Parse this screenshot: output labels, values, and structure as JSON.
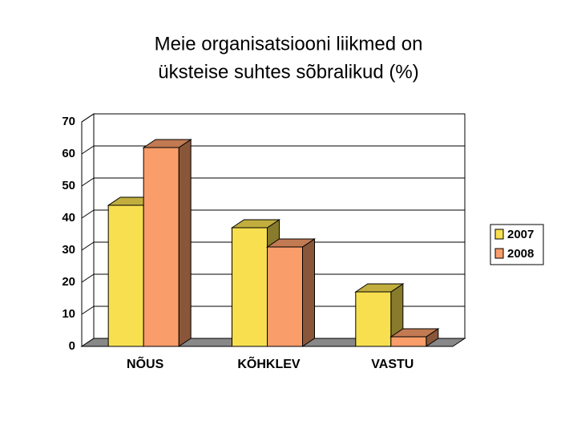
{
  "chart_data": {
    "type": "bar3d",
    "title": [
      "Meie organisatsiooni liikmed on",
      "üksteise suhtes sõbralikud (%)"
    ],
    "categories": [
      "NÕUS",
      "KÕHKLEV",
      "VASTU"
    ],
    "series": [
      {
        "name": "2007",
        "color": "#f8df50",
        "values": [
          44,
          37,
          17
        ]
      },
      {
        "name": "2008",
        "color": "#f99d6a",
        "values": [
          62,
          31,
          3
        ]
      }
    ],
    "ylim": [
      0,
      70
    ],
    "yticks": [
      0,
      10,
      20,
      30,
      40,
      50,
      60,
      70
    ],
    "grid": true,
    "legend": "right"
  }
}
